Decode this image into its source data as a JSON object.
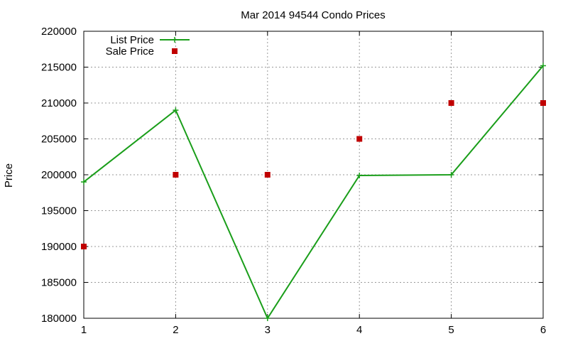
{
  "chart_data": {
    "type": "line",
    "title": "Mar 2014 94544 Condo Prices",
    "xlabel": "",
    "ylabel": "Price",
    "x": [
      1,
      2,
      3,
      4,
      5,
      6
    ],
    "xlim": [
      1,
      6
    ],
    "ylim": [
      180000,
      220000
    ],
    "x_ticks": [
      "1",
      "2",
      "3",
      "4",
      "5",
      "6"
    ],
    "y_ticks": [
      "180000",
      "185000",
      "190000",
      "195000",
      "200000",
      "205000",
      "210000",
      "215000",
      "220000"
    ],
    "grid": true,
    "legend_position": "top-left",
    "series": [
      {
        "name": "List Price",
        "style": "line-with-plus-markers",
        "color": "#1a9e1a",
        "values": [
          199000,
          209000,
          180000,
          199900,
          200000,
          215200
        ]
      },
      {
        "name": "Sale Price",
        "style": "square-markers",
        "color": "#c00000",
        "values": [
          190000,
          200000,
          200000,
          205000,
          210000,
          210000
        ]
      }
    ]
  }
}
